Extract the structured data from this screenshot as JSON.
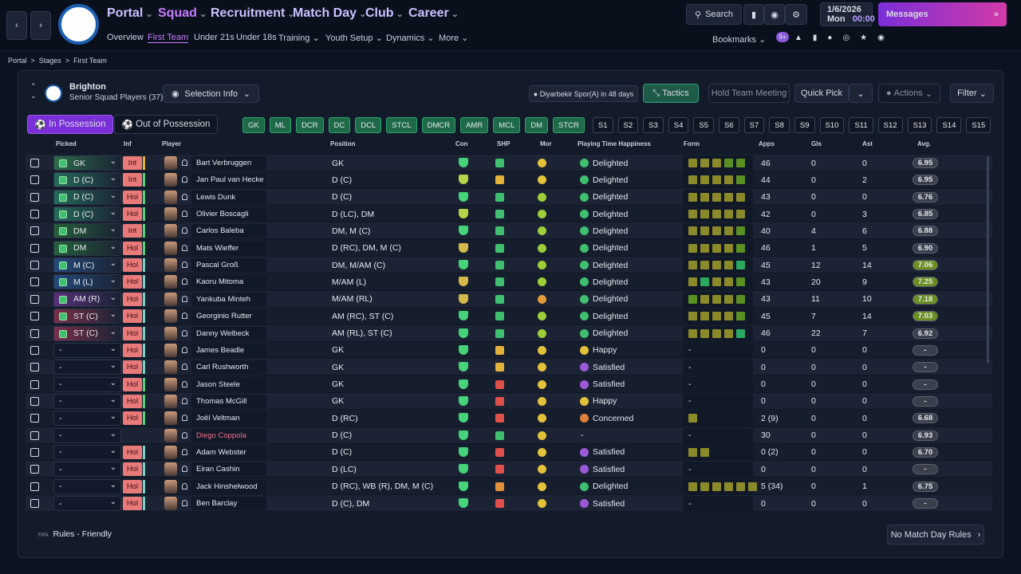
{
  "nav": {
    "menus": [
      "Portal",
      "Squad",
      "Recruitment",
      "Match Day",
      "Club",
      "Career"
    ],
    "submenu": [
      "Overview",
      "First Team",
      "Under 21s",
      "Under 18s",
      "Training",
      "Youth Setup",
      "Dynamics",
      "More"
    ],
    "search": "Search",
    "date": "1/6/2026",
    "day": "Mon",
    "time": "00:00",
    "messages": "Messages",
    "bookmarks": "Bookmarks",
    "badge": "9+"
  },
  "breadcrumb": [
    "Portal",
    "Stages",
    "First Team"
  ],
  "header": {
    "club": "Brighton",
    "subtitle": "Senior Squad Players (37)",
    "selection_info": "Selection Info",
    "next_match": "Diyarbekir Spor(A) in 48 days",
    "tactics": "Tactics",
    "meeting": "Hold Team Meeting",
    "quick_pick": "Quick Pick",
    "actions": "Actions",
    "filter": "Filter"
  },
  "tabs": [
    "In Possession",
    "Out of Possession"
  ],
  "positions": [
    "GK",
    "ML",
    "DCR",
    "DC",
    "DCL",
    "STCL",
    "DMCR",
    "AMR",
    "MCL",
    "DM",
    "STCR"
  ],
  "slots": [
    "S1",
    "S2",
    "S3",
    "S4",
    "S5",
    "S6",
    "S7",
    "S8",
    "S9",
    "S10",
    "S11",
    "S12",
    "S13",
    "S14",
    "S15"
  ],
  "table": {
    "columns": [
      "Picked",
      "Inf",
      "Player",
      "Position",
      "Con",
      "SHP",
      "Mor",
      "Playing Time Happiness",
      "Form",
      "Apps",
      "Gls",
      "Ast",
      "Avg."
    ],
    "rows": [
      {
        "picked": "GK",
        "picked_color": "#2d6b4a",
        "inf": "Int",
        "inf_bar": "#e0b23a",
        "name": "Bart Verbruggen",
        "position": "GK",
        "con": "#46d37a",
        "shp": "#3fbf6f",
        "mor": "#e2c23a",
        "pth": "Delighted",
        "pth_color": "#3fbf6f",
        "form": [
          "#8a8a2a",
          "#8a8a2a",
          "#8a8a2a",
          "#5a8f22",
          "#5a8f22"
        ],
        "apps": 46,
        "gls": 0,
        "ast": 0,
        "avg": "6.95",
        "avg_color": "#3a3f4b"
      },
      {
        "picked": "D (C)",
        "picked_color": "#256b5a",
        "inf": "Int",
        "inf_bar": "#5fd07a",
        "name": "Jan Paul van Hecke",
        "position": "D (C)",
        "con": "#b7d34a",
        "shp": "#e2b23a",
        "mor": "#e2c23a",
        "pth": "Delighted",
        "pth_color": "#3fbf6f",
        "form": [
          "#8a8a2a",
          "#8a8a2a",
          "#8a8a2a",
          "#8a8a2a",
          "#5a8f22"
        ],
        "apps": 44,
        "gls": 0,
        "ast": 2,
        "avg": "6.95",
        "avg_color": "#3a3f4b"
      },
      {
        "picked": "D (C)",
        "picked_color": "#256b5a",
        "inf": "Hol",
        "inf_bar": "#5fd07a",
        "name": "Lewis Dunk",
        "position": "D (C)",
        "con": "#46d37a",
        "shp": "#3fbf6f",
        "mor": "#9ccf3a",
        "pth": "Delighted",
        "pth_color": "#3fbf6f",
        "form": [
          "#8a8a2a",
          "#8a8a2a",
          "#8a8a2a",
          "#8a8a2a",
          "#8a8a2a"
        ],
        "apps": 43,
        "gls": 0,
        "ast": 0,
        "avg": "6.76",
        "avg_color": "#3a3f4b"
      },
      {
        "picked": "D (C)",
        "picked_color": "#256b5a",
        "inf": "Hol",
        "inf_bar": "#5fd07a",
        "name": "Olivier Boscagli",
        "position": "D (LC), DM",
        "con": "#b7d34a",
        "shp": "#3fbf6f",
        "mor": "#9ccf3a",
        "pth": "Delighted",
        "pth_color": "#3fbf6f",
        "form": [
          "#8a8a2a",
          "#8a8a2a",
          "#8a8a2a",
          "#8a8a2a",
          "#8a8a2a"
        ],
        "apps": 42,
        "gls": 0,
        "ast": 3,
        "avg": "6.85",
        "avg_color": "#3a3f4b"
      },
      {
        "picked": "DM",
        "picked_color": "#26603a",
        "inf": "Int",
        "inf_bar": "#5fd07a",
        "name": "Carlos Baleba",
        "position": "DM, M (C)",
        "con": "#46d37a",
        "shp": "#3fbf6f",
        "mor": "#9ccf3a",
        "pth": "Delighted",
        "pth_color": "#3fbf6f",
        "form": [
          "#8a8a2a",
          "#8a8a2a",
          "#8a8a2a",
          "#8a8a2a",
          "#5a8f22"
        ],
        "apps": 40,
        "gls": 4,
        "ast": 6,
        "avg": "6.88",
        "avg_color": "#3a3f4b"
      },
      {
        "picked": "DM",
        "picked_color": "#26603a",
        "inf": "Hol",
        "inf_bar": "#5fd07a",
        "name": "Mats Wieffer",
        "position": "D (RC), DM, M (C)",
        "con": "#d3b94a",
        "shp": "#3fbf6f",
        "mor": "#9ccf3a",
        "pth": "Delighted",
        "pth_color": "#3fbf6f",
        "form": [
          "#8a8a2a",
          "#8a8a2a",
          "#8a8a2a",
          "#8a8a2a",
          "#5a8f22"
        ],
        "apps": 46,
        "gls": 1,
        "ast": 5,
        "avg": "6.90",
        "avg_color": "#3a3f4b"
      },
      {
        "picked": "M (C)",
        "picked_color": "#244a7a",
        "inf": "Hol",
        "inf_bar": "#7fd0c0",
        "name": "Pascal Groß",
        "position": "DM, M/AM (C)",
        "con": "#46d37a",
        "shp": "#3fbf6f",
        "mor": "#9ccf3a",
        "pth": "Delighted",
        "pth_color": "#3fbf6f",
        "form": [
          "#8a8a2a",
          "#8a8a2a",
          "#8a8a2a",
          "#8a8a2a",
          "#2aa860"
        ],
        "apps": 45,
        "gls": 12,
        "ast": 14,
        "avg": "7.06",
        "avg_color": "#6a8f22"
      },
      {
        "picked": "M (L)",
        "picked_color": "#244a7a",
        "inf": "Hol",
        "inf_bar": "#7fd0c0",
        "name": "Kaoru Mitoma",
        "position": "M/AM (L)",
        "con": "#d3b94a",
        "shp": "#3fbf6f",
        "mor": "#9ccf3a",
        "pth": "Delighted",
        "pth_color": "#3fbf6f",
        "form": [
          "#8a8a2a",
          "#2aa860",
          "#8a8a2a",
          "#8a8a2a",
          "#5a8f22"
        ],
        "apps": 43,
        "gls": 20,
        "ast": 9,
        "avg": "7.25",
        "avg_color": "#6a8f22"
      },
      {
        "picked": "AM (R)",
        "picked_color": "#5a2f7a",
        "inf": "Hol",
        "inf_bar": "#7fd0c0",
        "name": "Yankuba Minteh",
        "position": "M/AM (RL)",
        "con": "#d3b94a",
        "shp": "#3fbf6f",
        "mor": "#e29a3a",
        "pth": "Delighted",
        "pth_color": "#3fbf6f",
        "form": [
          "#5a8f22",
          "#8a8a2a",
          "#8a8a2a",
          "#8a8a2a",
          "#5a8f22"
        ],
        "apps": 43,
        "gls": 11,
        "ast": 10,
        "avg": "7.18",
        "avg_color": "#6a8f22"
      },
      {
        "picked": "ST (C)",
        "picked_color": "#7a2f4a",
        "inf": "Hol",
        "inf_bar": "#7fd0c0",
        "name": "Georginio Rutter",
        "position": "AM (RC), ST (C)",
        "con": "#46d37a",
        "shp": "#3fbf6f",
        "mor": "#9ccf3a",
        "pth": "Delighted",
        "pth_color": "#3fbf6f",
        "form": [
          "#8a8a2a",
          "#8a8a2a",
          "#8a8a2a",
          "#8a8a2a",
          "#5a8f22"
        ],
        "apps": 45,
        "gls": 7,
        "ast": 14,
        "avg": "7.03",
        "avg_color": "#6a8f22"
      },
      {
        "picked": "ST (C)",
        "picked_color": "#7a2f4a",
        "inf": "Hol",
        "inf_bar": "#7fd0c0",
        "name": "Danny Welbeck",
        "position": "AM (RL), ST (C)",
        "con": "#46d37a",
        "shp": "#3fbf6f",
        "mor": "#9ccf3a",
        "pth": "Delighted",
        "pth_color": "#3fbf6f",
        "form": [
          "#8a8a2a",
          "#8a8a2a",
          "#8a8a2a",
          "#8a8a2a",
          "#2aa860"
        ],
        "apps": 46,
        "gls": 22,
        "ast": 7,
        "avg": "6.92",
        "avg_color": "#3a3f4b"
      },
      {
        "picked": "-",
        "inf": "Hol",
        "inf_bar": "#7fd0c0",
        "name": "James Beadle",
        "position": "GK",
        "con": "#46d37a",
        "shp": "#e2b23a",
        "mor": "#e2c23a",
        "pth": "Happy",
        "pth_color": "#e2c23a",
        "form": "-",
        "apps": 0,
        "gls": 0,
        "ast": 0,
        "avg": "-",
        "avg_color": "#3a3f4b"
      },
      {
        "picked": "-",
        "inf": "Hol",
        "inf_bar": "#7fd0c0",
        "name": "Carl Rushworth",
        "position": "GK",
        "con": "#46d37a",
        "shp": "#e2b23a",
        "mor": "#e2c23a",
        "pth": "Satisfied",
        "pth_color": "#9a5ad8",
        "form": "-",
        "apps": 0,
        "gls": 0,
        "ast": 0,
        "avg": "-",
        "avg_color": "#3a3f4b"
      },
      {
        "picked": "-",
        "inf": "Hol",
        "inf_bar": "#5fd07a",
        "name": "Jason Steele",
        "position": "GK",
        "con": "#46d37a",
        "shp": "#e0504a",
        "mor": "#e2c23a",
        "pth": "Satisfied",
        "pth_color": "#9a5ad8",
        "form": "-",
        "apps": 0,
        "gls": 0,
        "ast": 0,
        "avg": "-",
        "avg_color": "#3a3f4b"
      },
      {
        "picked": "-",
        "inf": "Hol",
        "inf_bar": "#5fd07a",
        "name": "Thomas McGill",
        "position": "GK",
        "con": "#46d37a",
        "shp": "#e0504a",
        "mor": "#e2c23a",
        "pth": "Happy",
        "pth_color": "#e2c23a",
        "form": "-",
        "apps": 0,
        "gls": 0,
        "ast": 0,
        "avg": "-",
        "avg_color": "#3a3f4b"
      },
      {
        "picked": "-",
        "inf": "Hol",
        "inf_bar": "#5fd07a",
        "name": "Joël Veltman",
        "position": "D (RC)",
        "con": "#46d37a",
        "shp": "#e0504a",
        "mor": "#e2c23a",
        "pth": "Concerned",
        "pth_color": "#e0803a",
        "form": [
          "#8a8a2a"
        ],
        "apps": "2 (9)",
        "gls": 0,
        "ast": 0,
        "avg": "6.68",
        "avg_color": "#3a3f4b"
      },
      {
        "picked": "-",
        "name": "Diego Coppola",
        "name_color": "#f07090",
        "position": "D (C)",
        "con": "#46d37a",
        "shp": "#3fbf6f",
        "mor": "#e2c23a",
        "pth": "-",
        "form": "-",
        "apps": 30,
        "gls": 0,
        "ast": 0,
        "avg": "6.93",
        "avg_color": "#3a3f4b"
      },
      {
        "picked": "-",
        "inf": "Hol",
        "inf_bar": "#7fd0c0",
        "name": "Adam Webster",
        "position": "D (C)",
        "con": "#46d37a",
        "shp": "#e0504a",
        "mor": "#e2c23a",
        "pth": "Satisfied",
        "pth_color": "#9a5ad8",
        "form": [
          "#8a8a2a",
          "#8a8a2a"
        ],
        "apps": "0 (2)",
        "gls": 0,
        "ast": 0,
        "avg": "6.70",
        "avg_color": "#3a3f4b"
      },
      {
        "picked": "-",
        "inf": "Hol",
        "inf_bar": "#7fd0c0",
        "name": "Eiran Cashin",
        "position": "D (LC)",
        "con": "#46d37a",
        "shp": "#e0504a",
        "mor": "#e2c23a",
        "pth": "Satisfied",
        "pth_color": "#9a5ad8",
        "form": "-",
        "apps": 0,
        "gls": 0,
        "ast": 0,
        "avg": "-",
        "avg_color": "#3a3f4b"
      },
      {
        "picked": "-",
        "inf": "Hol",
        "inf_bar": "#7fd0c0",
        "name": "Jack Hinshelwood",
        "position": "D (RC), WB (R), DM, M (C)",
        "con": "#46d37a",
        "shp": "#e2903a",
        "mor": "#e2c23a",
        "pth": "Delighted",
        "pth_color": "#3fbf6f",
        "form": [
          "#8a8a2a",
          "#8a8a2a",
          "#8a8a2a",
          "#8a8a2a",
          "#8a8a2a",
          "#8a8a2a"
        ],
        "apps": "5 (34)",
        "gls": 0,
        "ast": 1,
        "avg": "6.75",
        "avg_color": "#3a3f4b"
      },
      {
        "picked": "-",
        "inf": "Hol",
        "inf_bar": "#7fd0c0",
        "name": "Ben Barclay",
        "position": "D (C), DM",
        "con": "#46d37a",
        "shp": "#e0504a",
        "mor": "#e2c23a",
        "pth": "Satisfied",
        "pth_color": "#9a5ad8",
        "form": "-",
        "apps": 0,
        "gls": 0,
        "ast": 0,
        "avg": "-",
        "avg_color": "#3a3f4b"
      }
    ]
  },
  "footer": {
    "rules": "Rules - Friendly",
    "match_day_rules": "No Match Day Rules"
  }
}
